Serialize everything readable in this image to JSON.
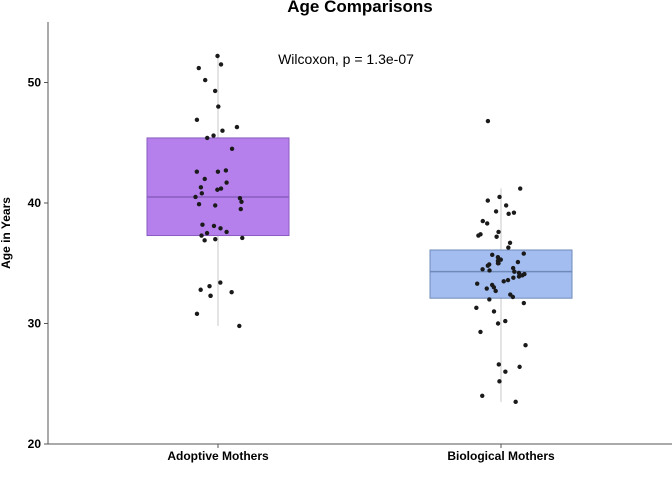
{
  "chart_data": {
    "type": "boxplot",
    "title": "Age Comparisons",
    "ylabel": "Age in Years",
    "xlabel": "",
    "ylim": [
      20,
      55
    ],
    "yticks": [
      20,
      30,
      40,
      50
    ],
    "grid": false,
    "legend": "none",
    "annotation": "Wilcoxon, p = 1.3e-07",
    "categories": [
      "Adoptive Mothers",
      "Biological Mothers"
    ],
    "boxes": [
      {
        "category": "Adoptive Mothers",
        "color": "#b580ec",
        "median_color": "#8a5cc0",
        "whisker_low": 29.8,
        "q1": 37.3,
        "median": 40.5,
        "q3": 45.4,
        "whisker_high": 52.2,
        "points": [
          52.2,
          51.5,
          51.2,
          50.2,
          49.3,
          48.0,
          46.9,
          46.3,
          46.0,
          45.6,
          45.4,
          44.5,
          42.7,
          42.6,
          42.6,
          42.0,
          41.7,
          41.3,
          41.2,
          41.1,
          40.8,
          40.5,
          40.4,
          40.1,
          39.9,
          39.8,
          39.5,
          38.2,
          38.1,
          37.9,
          37.6,
          37.5,
          37.3,
          37.1,
          37.0,
          36.9,
          33.4,
          33.1,
          32.8,
          32.6,
          32.3,
          32.3,
          30.8,
          29.8
        ]
      },
      {
        "category": "Biological Mothers",
        "color": "#a4bdf0",
        "median_color": "#6e8ab8",
        "whisker_low": 23.5,
        "q1": 32.1,
        "median": 34.3,
        "q3": 36.1,
        "whisker_high": 41.2,
        "points": [
          46.8,
          41.2,
          40.5,
          40.2,
          39.8,
          39.3,
          39.2,
          39.1,
          38.5,
          38.3,
          37.6,
          37.4,
          37.3,
          37.2,
          36.7,
          36.3,
          35.8,
          35.7,
          35.5,
          35.3,
          35.2,
          35.1,
          35.0,
          35.0,
          34.9,
          34.8,
          34.6,
          34.5,
          34.4,
          34.3,
          34.2,
          34.1,
          34.0,
          33.9,
          33.8,
          33.6,
          33.5,
          33.3,
          33.2,
          33.0,
          32.9,
          32.7,
          32.4,
          32.2,
          32.0,
          31.7,
          31.3,
          31.0,
          30.2,
          30.0,
          29.3,
          28.2,
          26.6,
          26.4,
          26.0,
          25.2,
          24.0,
          23.5
        ]
      }
    ]
  },
  "colors": {
    "axis": "#555555",
    "whisker": "#c8c8c8",
    "point": "#1a1a1a"
  }
}
